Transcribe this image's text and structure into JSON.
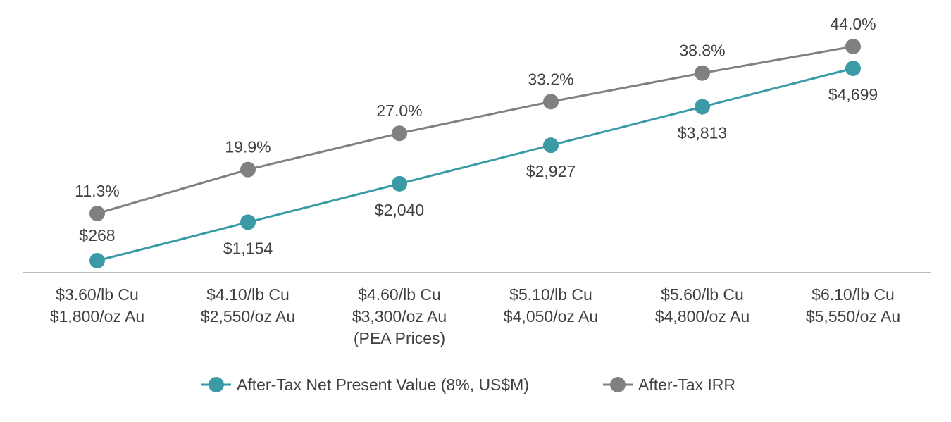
{
  "chart_data": {
    "type": "line",
    "categories": [
      [
        "$3.60/lb Cu",
        "$1,800/oz Au"
      ],
      [
        "$4.10/lb Cu",
        "$2,550/oz Au"
      ],
      [
        "$4.60/lb Cu",
        "$3,300/oz Au",
        "(PEA Prices)"
      ],
      [
        "$5.10/lb Cu",
        "$4,050/oz Au"
      ],
      [
        "$5.60/lb Cu",
        "$4,800/oz Au"
      ],
      [
        "$6.10/lb Cu",
        "$5,550/oz Au"
      ]
    ],
    "series": [
      {
        "name": "After-Tax Net Present Value (8%, US$M)",
        "color": "#3a9aa6",
        "values": [
          268,
          1154,
          2040,
          2927,
          3813,
          4699
        ],
        "labels": [
          "$268",
          "$1,154",
          "$2,040",
          "$2,927",
          "$3,813",
          "$4,699"
        ],
        "label_position": "above-left-then-below"
      },
      {
        "name": "After-Tax IRR",
        "color": "#808080",
        "values": [
          11.3,
          19.9,
          27.0,
          33.2,
          38.8,
          44.0
        ],
        "labels": [
          "11.3%",
          "19.9%",
          "27.0%",
          "33.2%",
          "38.8%",
          "44.0%"
        ],
        "label_position": "above"
      }
    ],
    "legend_placement": "bottom-center",
    "grid": false,
    "axis_color": "#a6a6a6"
  }
}
